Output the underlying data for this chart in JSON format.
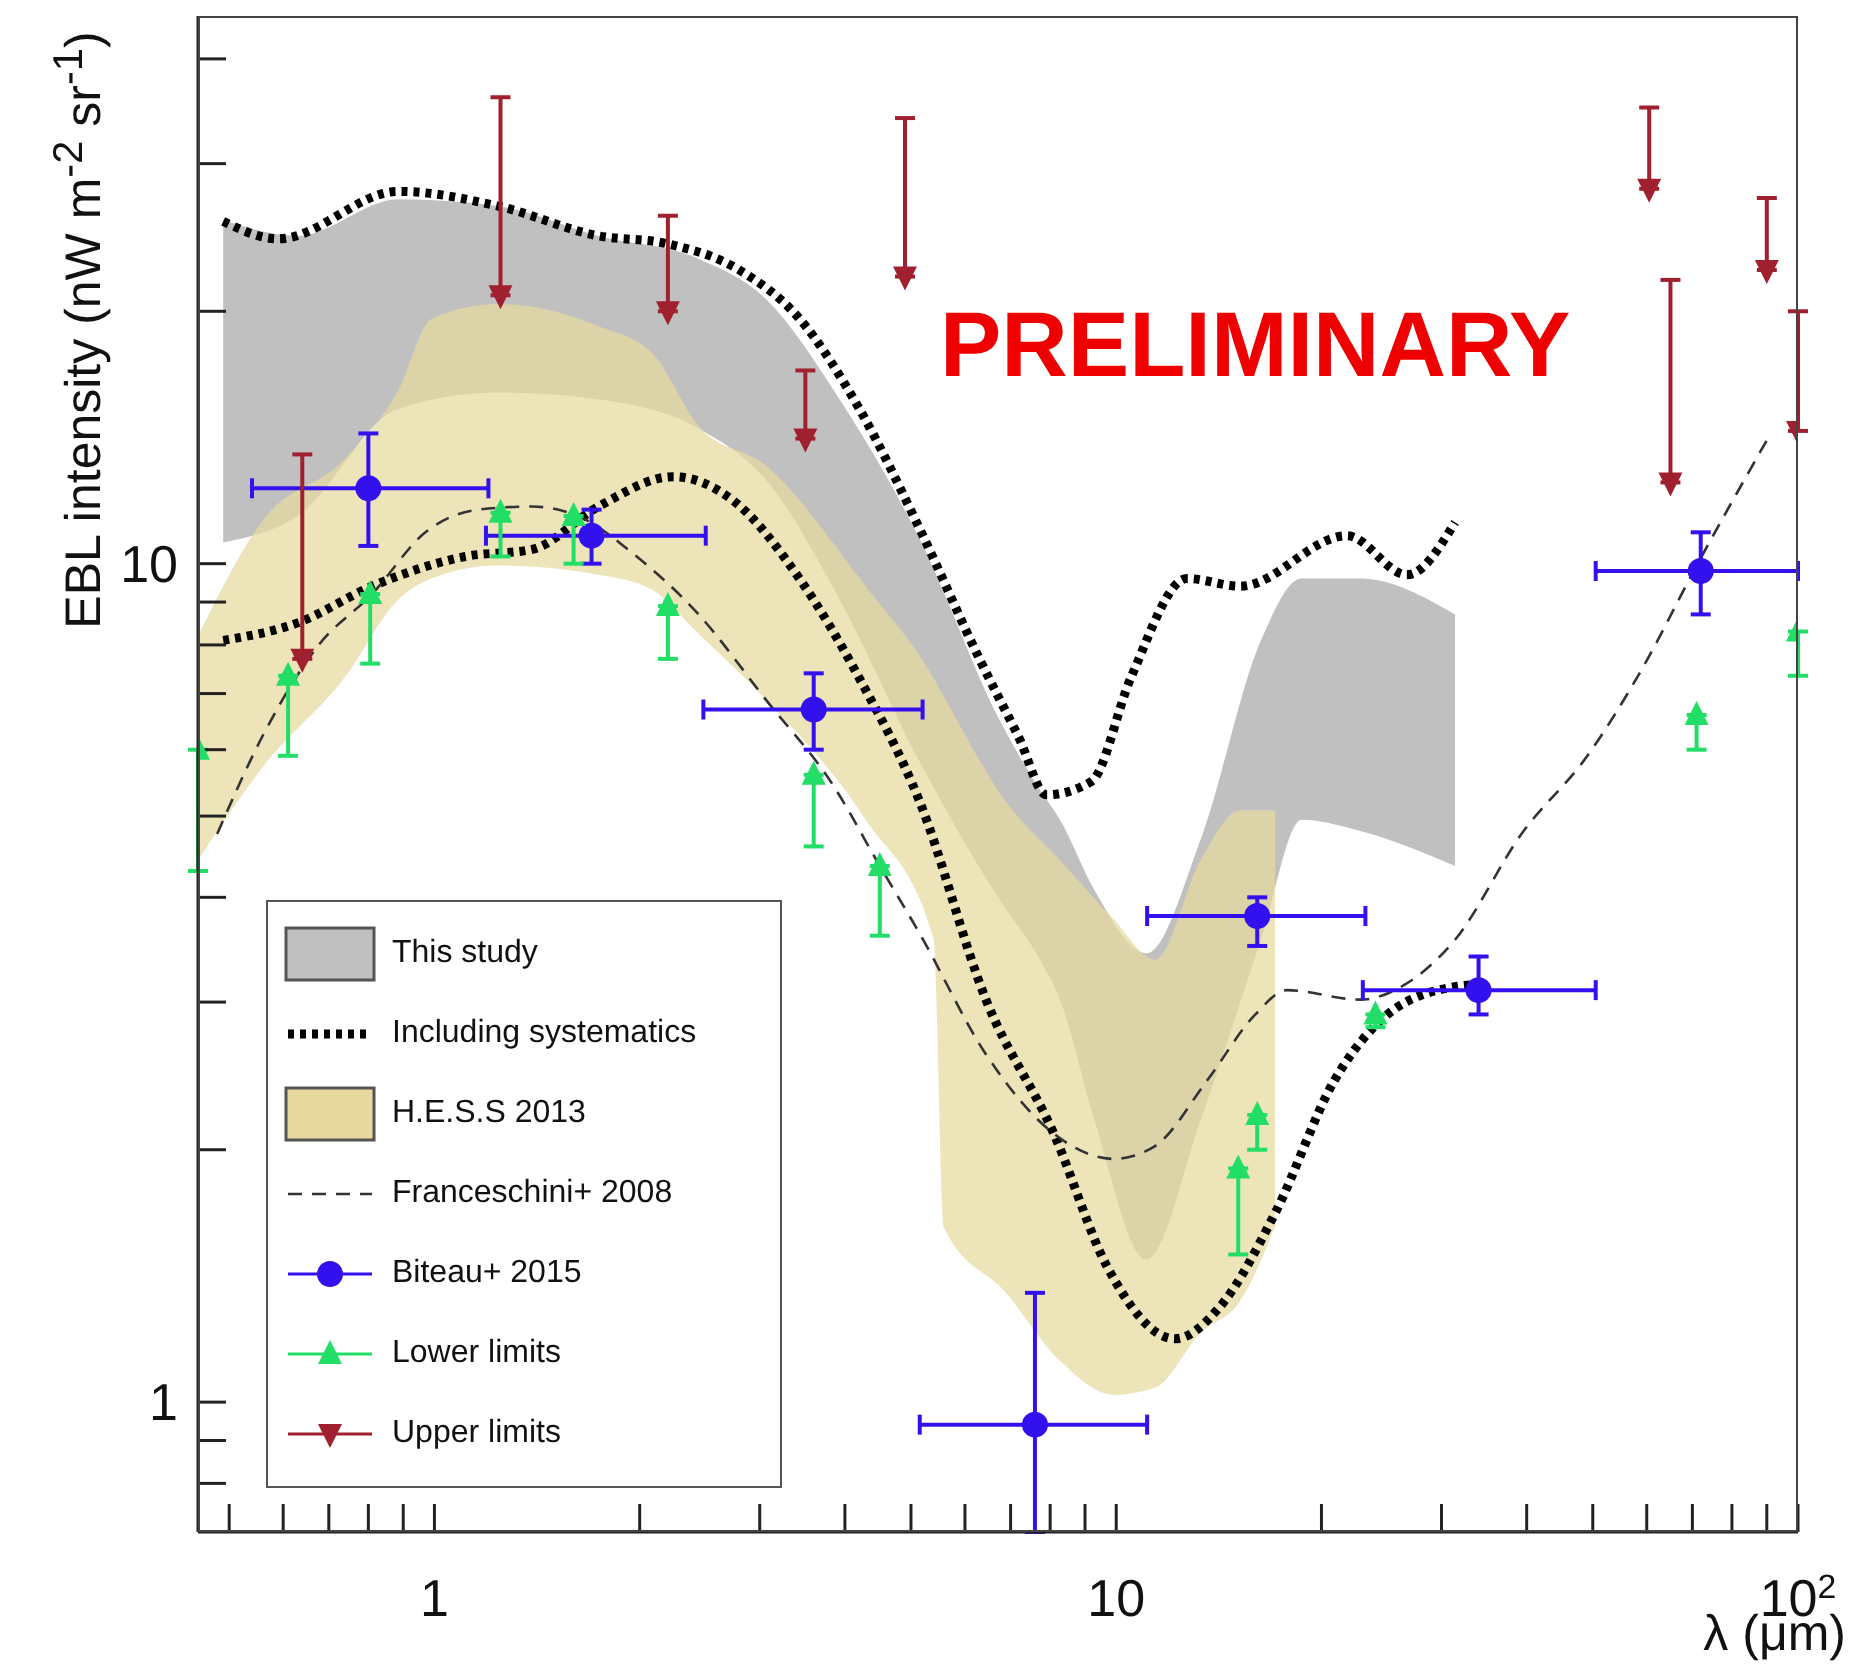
{
  "chart_data": {
    "type": "line",
    "ylabel": "EBL intensity (nW m$^{-2}$ sr$^{-1}$)",
    "xlabel": "λ (μm)",
    "annotations": [
      "PRELIMINARY"
    ],
    "log": "xy",
    "legend": "bottom left",
    "xlim": [
      0.45,
      100
    ],
    "ylim": [
      0.7,
      45
    ],
    "xticks": [
      {
        "value": 0.5,
        "label": null
      },
      {
        "value": 0.6,
        "label": null
      },
      {
        "value": 0.7,
        "label": null
      },
      {
        "value": 0.8,
        "label": null
      },
      {
        "value": 0.9,
        "label": null
      },
      1,
      {
        "value": 2,
        "label": null
      },
      {
        "value": 3,
        "label": null
      },
      {
        "value": 4,
        "label": null
      },
      {
        "value": 5,
        "label": null
      },
      {
        "value": 6,
        "label": null
      },
      {
        "value": 7,
        "label": null
      },
      {
        "value": 8,
        "label": null
      },
      {
        "value": 9,
        "label": null
      },
      10,
      {
        "value": 20,
        "label": null
      },
      {
        "value": 30,
        "label": null
      },
      {
        "value": 40,
        "label": null
      },
      {
        "value": 50,
        "label": null
      },
      {
        "value": 60,
        "label": null
      },
      {
        "value": 70,
        "label": null
      },
      {
        "value": 80,
        "label": null
      },
      {
        "value": 90,
        "label": null
      },
      {
        "value": 100,
        "label": "10$^{2}$"
      }
    ],
    "yticks": [
      {
        "value": 0.8,
        "label": null
      },
      {
        "value": 0.9,
        "label": null
      },
      1,
      {
        "value": 2,
        "label": null
      },
      {
        "value": 3,
        "label": null
      },
      {
        "value": 4,
        "label": null
      },
      {
        "value": 5,
        "label": null
      },
      {
        "value": 6,
        "label": null
      },
      {
        "value": 7,
        "label": null
      },
      {
        "value": 8,
        "label": null
      },
      {
        "value": 9,
        "label": null
      },
      10,
      {
        "value": 20,
        "label": null
      },
      {
        "value": 30,
        "label": null
      },
      {
        "value": 40,
        "label": null
      }
    ],
    "series": [
      {
        "type": "area",
        "name": "This study",
        "color": "#c0c0c0",
        "x": [
          0.49,
          0.63,
          0.885,
          1.24,
          1.74,
          2.44,
          3.06,
          3.93,
          5.15,
          6.75,
          7.73,
          8.27,
          9.29,
          11.07,
          13.3,
          16.3,
          18.7,
          22.8,
          31.4
        ],
        "values": [
          null,
          null,
          null,
          null,
          null,
          null,
          null,
          null,
          null,
          null,
          null,
          null,
          null,
          null,
          null,
          null,
          null,
          null,
          null
        ],
        "lower": [
          10.6,
          11.4,
          15.3,
          16.0,
          15.7,
          14.5,
          12.6,
          9.06,
          5.8,
          3.97,
          3.37,
          3.02,
          2.17,
          1.48,
          2.17,
          3.56,
          4.95,
          4.8,
          4.36
        ],
        "upper": [
          25.7,
          24.6,
          27.2,
          26.7,
          24.6,
          23.1,
          20.7,
          15.7,
          10.7,
          6.5,
          5.37,
          4.95,
          4.08,
          3.43,
          4.69,
          8.1,
          9.6,
          9.6,
          8.7
        ]
      },
      {
        "name": "Including systematics",
        "color": "#000000",
        "line_style": "dotted",
        "x": [
          0.49,
          0.59,
          0.885,
          1.24,
          1.74,
          2.18,
          2.8,
          3.43,
          4.2,
          5.15,
          6.3,
          7.2,
          7.9,
          9.2,
          10.5,
          12.7,
          15.2,
          21.8,
          26.7,
          31.4
        ],
        "values": [
          25.6,
          24.4,
          27.8,
          26.7,
          24.6,
          24.1,
          22.4,
          19.6,
          15.3,
          11.0,
          7.7,
          6.2,
          5.3,
          5.5,
          7.3,
          9.6,
          9.4,
          10.8,
          9.7,
          11.2
        ]
      },
      {
        "color": "#000000",
        "line_style": "dotted",
        "x": [
          0.49,
          0.63,
          0.81,
          1.11,
          1.39,
          1.74,
          2.24,
          2.74,
          3.43,
          4.2,
          5.15,
          6.44,
          8.1,
          9.7,
          12.2,
          14.2,
          17.1,
          20.9,
          25.0,
          31.4,
          34.1
        ],
        "values": [
          8.1,
          8.5,
          9.4,
          10.2,
          10.4,
          11.7,
          12.7,
          11.9,
          9.6,
          7.3,
          5.2,
          3.02,
          2.09,
          1.45,
          1.19,
          1.3,
          1.68,
          2.42,
          2.9,
          3.13,
          3.15
        ]
      },
      {
        "type": "area",
        "name": "H.E.S.S 2013",
        "color": "#e8d9a0",
        "x": [
          0.45,
          0.562,
          0.737,
          0.885,
          0.99,
          1.24,
          1.74,
          2.09,
          2.44,
          3.06,
          4.29,
          5.4,
          5.58,
          6.89,
          8.27,
          9.93,
          11.4,
          13.3,
          15.2,
          17.1
        ],
        "values": [
          null,
          null,
          null,
          null,
          null,
          null,
          null,
          null,
          null,
          null,
          null,
          null,
          null,
          null,
          null,
          null,
          null,
          null,
          null,
          null
        ],
        "lower": [
          4.43,
          5.74,
          7.3,
          9.06,
          9.6,
          9.95,
          9.7,
          9.3,
          8.25,
          6.89,
          4.95,
          3.56,
          1.62,
          1.35,
          1.12,
          1.02,
          1.04,
          1.21,
          1.32,
          1.62
        ],
        "upper": [
          8.2,
          11.3,
          13.3,
          16.1,
          19.6,
          20.4,
          19.2,
          17.8,
          14.6,
          13.1,
          9.4,
          7.3,
          6.96,
          5.2,
          4.43,
          3.76,
          3.37,
          4.43,
          5.08,
          5.08
        ]
      },
      {
        "name": "Franceschini+ 2008",
        "color": "#333333",
        "line_style": "dashed",
        "x": [
          0.48,
          0.562,
          0.675,
          0.81,
          0.97,
          1.16,
          1.39,
          1.66,
          1.95,
          2.44,
          3.06,
          3.85,
          4.5,
          5.15,
          6.44,
          8.1,
          9.93,
          11.4,
          13.6,
          16.0,
          17.8,
          22.8,
          26.2,
          31.4,
          39.3,
          49.1,
          59,
          70.8,
          90.3
        ],
        "values": [
          4.76,
          6.27,
          7.98,
          9.2,
          10.9,
          11.6,
          11.7,
          11.3,
          10.3,
          8.7,
          6.89,
          5.43,
          4.36,
          3.62,
          2.6,
          2.09,
          1.95,
          2.02,
          2.42,
          2.9,
          3.1,
          3.02,
          3.13,
          3.56,
          4.76,
          5.9,
          7.48,
          9.9,
          14.1
        ]
      },
      {
        "type": "scatter",
        "name": "Biteau+ 2015",
        "color": "#3311ee",
        "marker": "circle",
        "x": [
          0.8,
          1.7,
          3.6,
          7.6,
          16.1,
          34,
          72
        ],
        "values": [
          12.3,
          10.8,
          6.7,
          0.94,
          3.8,
          3.1,
          9.8
        ],
        "errors": [
          [
            10.5,
            14.3
          ],
          [
            10.0,
            11.6
          ],
          [
            6.0,
            7.4
          ],
          [
            0.7,
            1.35
          ],
          [
            3.5,
            4.0
          ],
          [
            2.9,
            3.4
          ],
          [
            8.7,
            10.9
          ]
        ],
        "xerrors": [
          [
            0.54,
            1.2
          ],
          [
            1.19,
            2.5
          ],
          [
            2.48,
            5.2
          ],
          [
            5.15,
            11.1
          ],
          [
            11.1,
            23.2
          ],
          [
            23,
            50.5
          ],
          [
            50.5,
            100
          ]
        ]
      },
      {
        "type": "scatter",
        "name": "Lower limits",
        "color": "#22dd66",
        "marker": "triangle",
        "x": [
          0.45,
          0.61,
          0.805,
          1.25,
          1.6,
          2.2,
          3.6,
          4.5,
          15.1,
          16.1,
          24,
          71,
          100
        ],
        "values": [
          6.0,
          7.35,
          9.2,
          11.5,
          11.4,
          8.9,
          5.6,
          4.36,
          1.9,
          2.2,
          2.9,
          6.6,
          8.3
        ],
        "errors": [
          [
            4.3,
            6.0
          ],
          [
            5.9,
            7.35
          ],
          [
            7.6,
            9.2
          ],
          [
            10.2,
            11.5
          ],
          [
            10.0,
            11.4
          ],
          [
            7.7,
            8.9
          ],
          [
            4.6,
            5.6
          ],
          [
            3.6,
            4.36
          ],
          [
            1.5,
            1.9
          ],
          [
            2.0,
            2.2
          ],
          [
            2.8,
            2.9
          ],
          [
            6.0,
            6.6
          ],
          [
            7.35,
            8.3
          ]
        ]
      },
      {
        "type": "scatter",
        "name": "Upper limits",
        "color": "#a02030",
        "marker": "triangle",
        "x": [
          0.64,
          1.25,
          2.2,
          3.5,
          4.9,
          60.5,
          65,
          90,
          100
        ],
        "values": [
          7.7,
          20.9,
          20,
          14.1,
          22,
          28,
          12.5,
          22.4,
          14.4
        ],
        "errors": [
          [
            7.7,
            13.5
          ],
          [
            20.9,
            36
          ],
          [
            20,
            26
          ],
          [
            14.1,
            17
          ],
          [
            22,
            34
          ],
          [
            28,
            35
          ],
          [
            12.5,
            21.8
          ],
          [
            22.4,
            27.3
          ],
          [
            14.4,
            20
          ]
        ]
      }
    ]
  }
}
